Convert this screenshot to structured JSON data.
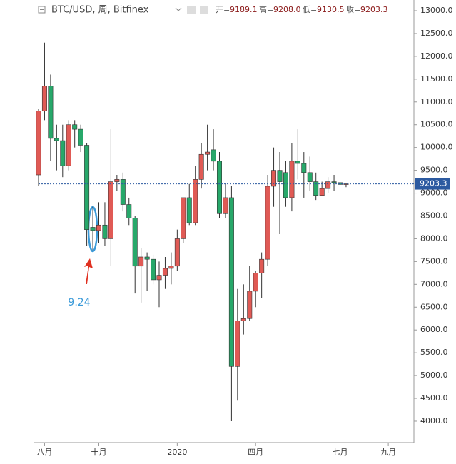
{
  "header": {
    "title": "BTC/USD, 周, Bitfinex",
    "open_label": "开=",
    "open": "9189.1",
    "high_label": "高=",
    "high": "9208.0",
    "low_label": "低=",
    "low": "9130.5",
    "close_label": "收=",
    "close": "9203.3"
  },
  "chart_data": {
    "type": "candlestick",
    "categories": [
      null,
      "八月",
      null,
      null,
      null,
      null,
      null,
      null,
      null,
      null,
      "十月",
      null,
      null,
      null,
      null,
      null,
      null,
      null,
      null,
      null,
      null,
      null,
      null,
      "2020",
      null,
      null,
      null,
      null,
      null,
      null,
      null,
      null,
      null,
      null,
      null,
      null,
      "四月",
      null,
      null,
      null,
      null,
      null,
      null,
      null,
      null,
      null,
      null,
      null,
      null,
      null,
      "七月",
      null,
      null,
      null,
      null,
      null,
      null,
      null,
      "九月",
      null
    ],
    "open": [
      9400,
      10800,
      11350,
      10200,
      10150,
      9600,
      10500,
      10400,
      10050,
      8250,
      8180,
      8300,
      8000,
      9250,
      9300,
      8750,
      8450,
      7400,
      7600,
      7550,
      7100,
      7200,
      7350,
      7400,
      8000,
      8900,
      8350,
      9300,
      9850,
      9950,
      9700,
      8550,
      8900,
      5200,
      6200,
      6250,
      6850,
      7250,
      7550,
      9150,
      9500,
      9450,
      8900,
      9700,
      9650,
      9450,
      9250,
      8950,
      9100,
      9250,
      9230,
      9189.1,
      null,
      null,
      null,
      null,
      null,
      null,
      null,
      null
    ],
    "high": [
      10850,
      12300,
      11600,
      10500,
      10500,
      10600,
      10600,
      10500,
      10100,
      8700,
      8800,
      8800,
      10400,
      9400,
      9450,
      8900,
      8500,
      7800,
      7700,
      7650,
      7500,
      7600,
      7700,
      8200,
      8900,
      9200,
      9600,
      10100,
      10500,
      10400,
      9900,
      9200,
      9150,
      6900,
      7000,
      7400,
      7300,
      7700,
      9400,
      10000,
      9900,
      9700,
      10100,
      10400,
      9900,
      9800,
      9450,
      9250,
      9350,
      9400,
      9400,
      9208.0,
      null,
      null,
      null,
      null,
      null,
      null,
      null,
      null
    ],
    "low": [
      9150,
      10600,
      9700,
      9500,
      9350,
      9500,
      10000,
      9900,
      7850,
      7750,
      7900,
      7850,
      7400,
      9050,
      8600,
      8300,
      6800,
      6600,
      6850,
      7000,
      6500,
      6900,
      7000,
      7300,
      7900,
      8300,
      8300,
      9100,
      9500,
      9500,
      8450,
      8450,
      4000,
      4450,
      5900,
      6200,
      6500,
      6700,
      7400,
      8700,
      8100,
      8700,
      8600,
      9300,
      8900,
      9050,
      8850,
      8950,
      9000,
      9050,
      9100,
      9130.5,
      null,
      null,
      null,
      null,
      null,
      null,
      null,
      null
    ],
    "close": [
      10800,
      11350,
      10200,
      10150,
      9600,
      10500,
      10400,
      10050,
      8200,
      8180,
      8300,
      8000,
      9250,
      9300,
      8750,
      8450,
      7400,
      7600,
      7550,
      7100,
      7200,
      7350,
      7400,
      8000,
      8900,
      8350,
      9300,
      9850,
      9900,
      9700,
      8550,
      8900,
      5200,
      6200,
      6250,
      6850,
      7250,
      7550,
      9150,
      9500,
      9250,
      8900,
      9700,
      9650,
      9450,
      9250,
      8950,
      9100,
      9250,
      9230,
      9190,
      9203.3,
      null,
      null,
      null,
      null,
      null,
      null,
      null,
      null
    ],
    "up_color": "#e05a55",
    "down_color": "#27a86a",
    "last_price": 9203.3,
    "last_price_color": "#2c5aa0",
    "annotation": "9.24",
    "ylim": [
      3530,
      13235
    ],
    "yticks": [
      {
        "value": 4000,
        "label": "4000.0"
      },
      {
        "value": 4500,
        "label": "4500.0"
      },
      {
        "value": 5000,
        "label": "5000.0"
      },
      {
        "value": 5500,
        "label": "5500.0"
      },
      {
        "value": 6000,
        "label": "6000.0"
      },
      {
        "value": 6500,
        "label": "6500.0"
      },
      {
        "value": 7000,
        "label": "7000.0"
      },
      {
        "value": 7500,
        "label": "7500.0"
      },
      {
        "value": 8000,
        "label": "8000.0"
      },
      {
        "value": 8500,
        "label": "8500.0"
      },
      {
        "value": 9000,
        "label": "9000.0"
      },
      {
        "value": 9500,
        "label": "9500.0"
      },
      {
        "value": 10000,
        "label": "10000.0"
      },
      {
        "value": 10500,
        "label": "10500.0"
      },
      {
        "value": 11000,
        "label": "11000.0"
      },
      {
        "value": 11500,
        "label": "11500.0"
      },
      {
        "value": 12000,
        "label": "12000.0"
      },
      {
        "value": 12500,
        "label": "12500.0"
      },
      {
        "value": 13000,
        "label": "13000.0"
      }
    ]
  }
}
